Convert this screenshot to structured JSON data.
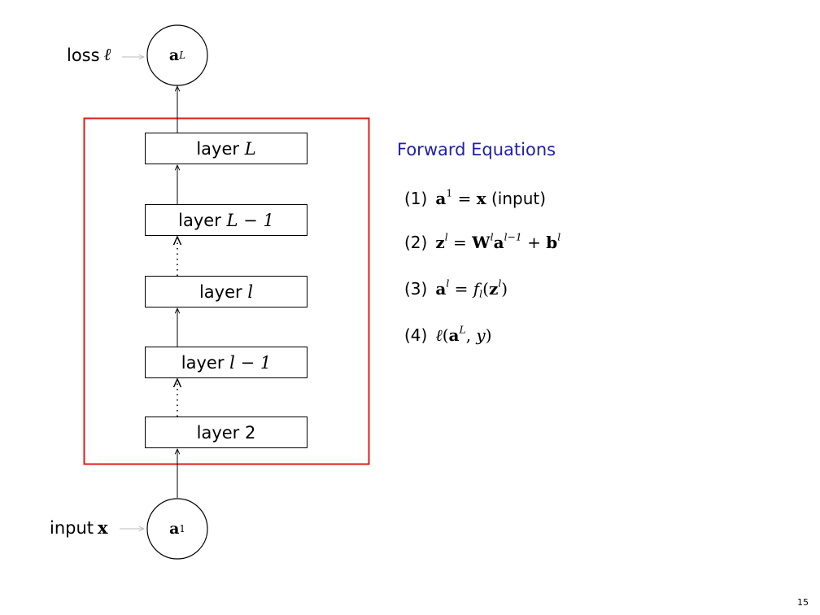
{
  "diagram": {
    "loss_label": "loss",
    "loss_symbol": "ℓ",
    "top_node": {
      "base": "a",
      "sup": "L"
    },
    "input_label": "input",
    "input_symbol": "x",
    "bottom_node": {
      "base": "a",
      "sup": "1"
    },
    "layers": {
      "word": "layer",
      "L": "L",
      "L_minus_1": "L − 1",
      "l": "l",
      "l_minus_1": "l − 1",
      "two": "2"
    },
    "frame_color": "#e31a1c"
  },
  "equations": {
    "heading": "Forward Equations",
    "heading_color": "#1f1fa8",
    "eq1": {
      "num": "(1)",
      "note": "(input)"
    },
    "eq2": {
      "num": "(2)"
    },
    "eq3": {
      "num": "(3)"
    },
    "eq4": {
      "num": "(4)"
    }
  },
  "page_number": "15"
}
